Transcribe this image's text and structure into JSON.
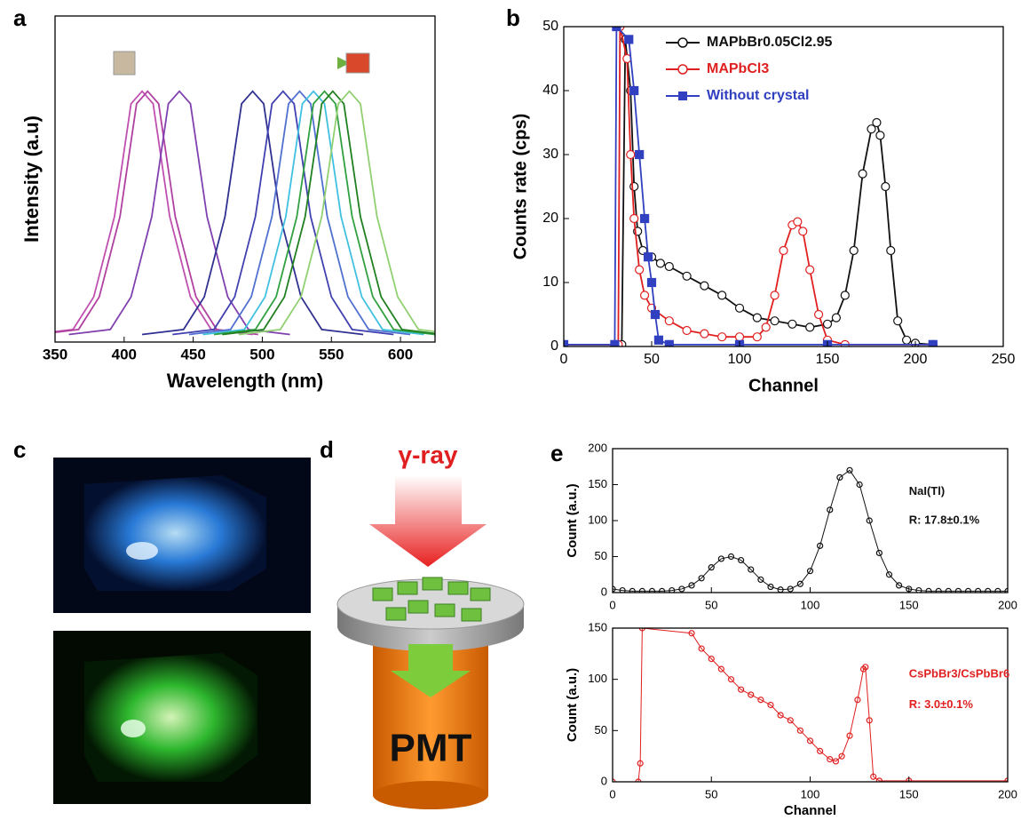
{
  "chart_data": [
    {
      "type": "line",
      "panel_label": "a",
      "xlabel": "Wavelength (nm)",
      "ylabel": "Intensity (a.u)",
      "xlim": [
        350,
        625
      ],
      "xticks": [
        350,
        400,
        450,
        500,
        550,
        600
      ],
      "ylim": [
        0,
        13
      ],
      "series": [
        {
          "color": "#c050b0",
          "x": [
            333,
            363,
            378,
            393,
            405,
            413,
            421,
            433,
            448,
            463,
            493
          ],
          "values": [
            0.3,
            0.5,
            1.8,
            5,
            9.5,
            10,
            9.5,
            5,
            1.8,
            0.5,
            0.3
          ]
        },
        {
          "color": "#b040a0",
          "x": [
            337,
            367,
            382,
            397,
            409,
            417,
            425,
            437,
            452,
            467,
            497
          ],
          "values": [
            0.3,
            0.5,
            1.8,
            5,
            9.5,
            10,
            9.5,
            5,
            1.8,
            0.5,
            0.3
          ]
        },
        {
          "color": "#8040b0",
          "x": [
            360,
            390,
            405,
            420,
            432,
            440,
            448,
            460,
            475,
            490,
            520
          ],
          "values": [
            0.3,
            0.5,
            1.8,
            5,
            9.5,
            10,
            9.5,
            5,
            1.8,
            0.5,
            0.3
          ]
        },
        {
          "color": "#303090",
          "x": [
            413,
            443,
            458,
            473,
            485,
            493,
            501,
            513,
            528,
            543,
            573
          ],
          "values": [
            0.3,
            0.5,
            1.8,
            5,
            9.5,
            10,
            9.5,
            5,
            1.8,
            0.5,
            0.3
          ]
        },
        {
          "color": "#4040b0",
          "x": [
            435,
            465,
            480,
            495,
            507,
            515,
            523,
            535,
            550,
            565,
            595
          ],
          "values": [
            0.3,
            0.5,
            1.8,
            5,
            9.5,
            10,
            9.5,
            5,
            1.8,
            0.5,
            0.3
          ]
        },
        {
          "color": "#5070d0",
          "x": [
            447,
            477,
            492,
            507,
            519,
            527,
            535,
            547,
            562,
            577,
            607
          ],
          "values": [
            0.3,
            0.5,
            1.8,
            5,
            9.5,
            10,
            9.5,
            5,
            1.8,
            0.5,
            0.3
          ]
        },
        {
          "color": "#40c0e0",
          "x": [
            457,
            487,
            502,
            517,
            529,
            537,
            545,
            557,
            572,
            587,
            617
          ],
          "values": [
            0.3,
            0.5,
            1.8,
            5,
            9.5,
            10,
            9.5,
            5,
            1.8,
            0.5,
            0.3
          ]
        },
        {
          "color": "#30a040",
          "x": [
            465,
            495,
            510,
            525,
            537,
            545,
            553,
            565,
            580,
            595,
            625
          ],
          "values": [
            0.3,
            0.5,
            1.8,
            5,
            9.5,
            10,
            9.5,
            5,
            1.8,
            0.5,
            0.3
          ]
        },
        {
          "color": "#208020",
          "x": [
            471,
            501,
            516,
            531,
            543,
            551,
            559,
            571,
            586,
            601,
            631
          ],
          "values": [
            0.3,
            0.5,
            1.8,
            5,
            9.5,
            10,
            9.5,
            5,
            1.8,
            0.5,
            0.3
          ]
        },
        {
          "color": "#90d070",
          "x": [
            483,
            513,
            528,
            543,
            555,
            563,
            571,
            583,
            598,
            613,
            643
          ],
          "values": [
            0.3,
            0.5,
            1.8,
            5,
            9.5,
            10,
            9.5,
            5,
            1.8,
            0.5,
            0.3
          ]
        }
      ]
    },
    {
      "type": "line",
      "panel_label": "b",
      "xlabel": "Channel",
      "ylabel": "Counts rate (cps)",
      "xlim": [
        0,
        250
      ],
      "xticks": [
        0,
        50,
        100,
        150,
        200,
        250
      ],
      "ylim": [
        0,
        50
      ],
      "yticks": [
        0,
        10,
        20,
        30,
        40,
        50
      ],
      "series": [
        {
          "name": "MAPbBr0.05Cl2.95",
          "color": "#111111",
          "marker": "circle",
          "x": [
            0,
            33,
            35,
            38,
            40,
            42,
            45,
            50,
            55,
            60,
            70,
            80,
            90,
            100,
            110,
            120,
            130,
            140,
            150,
            155,
            160,
            165,
            170,
            175,
            178,
            180,
            183,
            186,
            190,
            195,
            200,
            210
          ],
          "values": [
            0.3,
            0.3,
            48,
            40,
            25,
            18,
            15,
            14,
            13,
            12.5,
            11,
            9.5,
            8,
            6,
            4.5,
            4,
            3.5,
            3,
            3.5,
            4.5,
            8,
            15,
            27,
            34,
            35,
            33,
            25,
            15,
            4,
            1,
            0.5,
            0.3
          ]
        },
        {
          "name": "MAPbCl3",
          "color": "#e02020",
          "marker": "circle",
          "x": [
            0,
            31,
            32,
            36,
            38,
            40,
            43,
            46,
            50,
            60,
            70,
            80,
            90,
            100,
            110,
            115,
            120,
            125,
            130,
            133,
            136,
            140,
            145,
            150,
            160,
            210
          ],
          "values": [
            0.3,
            0.3,
            50,
            45,
            30,
            20,
            12,
            8,
            6,
            4,
            2.5,
            2,
            1.5,
            1.5,
            1.5,
            3,
            8,
            15,
            19,
            19.5,
            18,
            12,
            5,
            1,
            0.3,
            0.3
          ]
        },
        {
          "name": "Without crystal",
          "color": "#3040c0",
          "marker": "square",
          "x": [
            0,
            29,
            30,
            37,
            40,
            43,
            46,
            48,
            50,
            52,
            54,
            60,
            100,
            150,
            210
          ],
          "values": [
            0.3,
            0.3,
            50,
            48,
            40,
            30,
            20,
            14,
            10,
            5,
            1,
            0.3,
            0.3,
            0.3,
            0.3
          ]
        }
      ]
    },
    {
      "type": "scatter",
      "panel_label": "e",
      "ylabel": "Count (a.u.)",
      "annotations": [
        "NaI(Tl)",
        "R: 17.8±0.1%"
      ],
      "xlim": [
        0,
        200
      ],
      "xticks": [
        0,
        50,
        100,
        150,
        200
      ],
      "ylim": [
        0,
        200
      ],
      "yticks": [
        0,
        50,
        100,
        150,
        200
      ],
      "series": [
        {
          "color": "#111111",
          "marker": "circle",
          "x": [
            0,
            5,
            10,
            15,
            20,
            25,
            30,
            35,
            40,
            45,
            50,
            55,
            60,
            65,
            70,
            75,
            80,
            85,
            90,
            95,
            100,
            105,
            110,
            115,
            120,
            125,
            130,
            135,
            140,
            145,
            150,
            155,
            160,
            165,
            170,
            175,
            180,
            185,
            190,
            195,
            200
          ],
          "values": [
            5,
            3,
            2,
            2,
            2,
            2,
            3,
            5,
            10,
            20,
            35,
            47,
            50,
            45,
            32,
            18,
            8,
            4,
            5,
            12,
            30,
            65,
            115,
            160,
            170,
            150,
            100,
            55,
            25,
            10,
            5,
            3,
            2,
            2,
            2,
            2,
            2,
            2,
            2,
            2,
            2
          ]
        }
      ]
    },
    {
      "type": "scatter",
      "xlabel": "Channel",
      "ylabel": "Count  (a.u.)",
      "annotations": [
        "CsPbBr3/CsPbBr6",
        "R: 3.0±0.1%"
      ],
      "xlim": [
        0,
        200
      ],
      "xticks": [
        0,
        50,
        100,
        150,
        200
      ],
      "ylim": [
        0,
        150
      ],
      "yticks": [
        0,
        50,
        100,
        150
      ],
      "series": [
        {
          "color": "#e02020",
          "marker": "circle",
          "x": [
            0,
            13,
            14,
            15,
            40,
            45,
            50,
            55,
            60,
            65,
            70,
            75,
            80,
            85,
            90,
            95,
            100,
            105,
            110,
            113,
            116,
            120,
            124,
            127,
            128,
            130,
            132,
            135,
            150,
            200
          ],
          "values": [
            0,
            0,
            18,
            150,
            145,
            130,
            120,
            110,
            100,
            90,
            85,
            80,
            75,
            65,
            60,
            50,
            40,
            30,
            22,
            20,
            25,
            45,
            80,
            110,
            112,
            60,
            5,
            1,
            1,
            1
          ]
        }
      ]
    }
  ],
  "panels": {
    "c": {
      "label": "c"
    },
    "d": {
      "label": "d",
      "ray": "γ-ray",
      "detector": "PMT"
    }
  }
}
